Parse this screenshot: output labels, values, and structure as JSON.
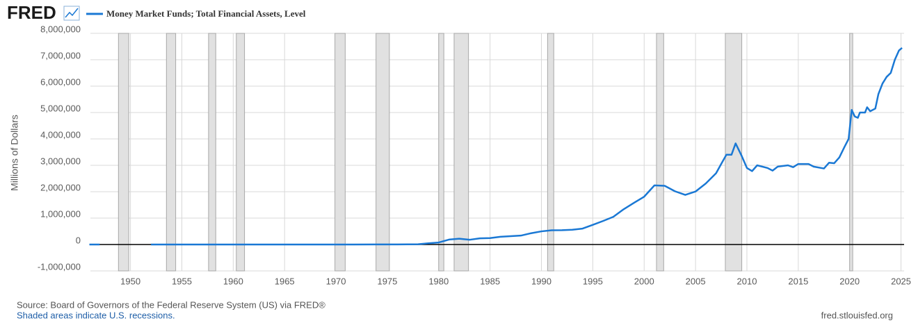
{
  "logo": "FRED",
  "chart_data": {
    "type": "line",
    "ylabel": "Millions of Dollars",
    "source": "Source: Board of Governors of the Federal Reserve System (US) via FRED®",
    "note": "Shaded areas indicate U.S. recessions.",
    "site": "fred.stlouisfed.org",
    "xlim": [
      1946.1,
      2025.3
    ],
    "xticks": [
      1950,
      1955,
      1960,
      1965,
      1970,
      1975,
      1980,
      1985,
      1990,
      1995,
      2000,
      2005,
      2010,
      2015,
      2020,
      2025
    ],
    "ylim": [
      -1000000,
      8000000
    ],
    "yticks": [
      {
        "value": -1000000,
        "label": "-1,000,000"
      },
      0,
      {
        "value": 1000000,
        "label": "1,000,000"
      },
      {
        "value": 2000000,
        "label": "2,000,000"
      },
      {
        "value": 3000000,
        "label": "3,000,000"
      },
      {
        "value": 4000000,
        "label": "4,000,000"
      },
      {
        "value": 5000000,
        "label": "5,000,000"
      },
      {
        "value": 6000000,
        "label": "6,000,000"
      },
      {
        "value": 7000000,
        "label": "7,000,000"
      },
      {
        "value": 8000000,
        "label": "8,000,000"
      }
    ],
    "grid": true,
    "recessions": [
      [
        1948.83,
        1949.83
      ],
      [
        1953.5,
        1954.4
      ],
      [
        1957.6,
        1958.3
      ],
      [
        1960.3,
        1961.1
      ],
      [
        1969.9,
        1970.9
      ],
      [
        1973.9,
        1975.2
      ],
      [
        1980.0,
        1980.5
      ],
      [
        1981.5,
        1982.9
      ],
      [
        1990.6,
        1991.2
      ],
      [
        2001.2,
        2001.9
      ],
      [
        2007.9,
        2009.5
      ],
      [
        2020.0,
        2020.3
      ]
    ],
    "x": [
      1946,
      1947,
      1950,
      1952,
      1960,
      1970,
      1974,
      1976,
      1978,
      1979,
      1980,
      1981,
      1982,
      1983,
      1984,
      1985,
      1986,
      1987,
      1988,
      1989,
      1990,
      1991,
      1992,
      1993,
      1994,
      1995,
      1996,
      1997,
      1998,
      1999,
      2000,
      2001,
      2002,
      2003,
      2004,
      2005,
      2006,
      2007,
      2007.5,
      2008.0,
      2008.5,
      2008.9,
      2009.5,
      2010.0,
      2010.5,
      2011.0,
      2012.0,
      2012.5,
      2013.0,
      2014.0,
      2014.5,
      2015.0,
      2016.0,
      2016.5,
      2017.5,
      2018.0,
      2018.5,
      2019.0,
      2019.5,
      2019.9,
      2020.2,
      2020.5,
      2020.8,
      2021.0,
      2021.5,
      2021.7,
      2022.0,
      2022.5,
      2022.8,
      2023.2,
      2023.6,
      2024.0,
      2024.4,
      2024.8,
      2025.1
    ],
    "series": [
      {
        "name": "Money Market Funds; Total Financial Assets, Level",
        "color": "#1a78d4",
        "values": [
          0,
          0,
          null,
          0,
          0,
          0,
          2400,
          3700,
          10800,
          45200,
          76400,
          186300,
          219800,
          179400,
          233600,
          243800,
          292100,
          316100,
          337900,
          428100,
          498300,
          539600,
          543600,
          559600,
          602900,
          745300,
          891100,
          1048700,
          1334200,
          1578800,
          1812100,
          2240700,
          2223300,
          2016400,
          1879800,
          2006900,
          2312100,
          2700000,
          3053500,
          3400000,
          3400000,
          3830000,
          3350000,
          2900000,
          2780000,
          3000000,
          2900000,
          2800000,
          2950000,
          3000000,
          2930000,
          3050000,
          3050000,
          2950000,
          2880000,
          3100000,
          3080000,
          3300000,
          3700000,
          4000000,
          5100000,
          4850000,
          4800000,
          5000000,
          5000000,
          5200000,
          5050000,
          5150000,
          5700000,
          6100000,
          6350000,
          6500000,
          7000000,
          7350000,
          7450000
        ]
      }
    ]
  }
}
